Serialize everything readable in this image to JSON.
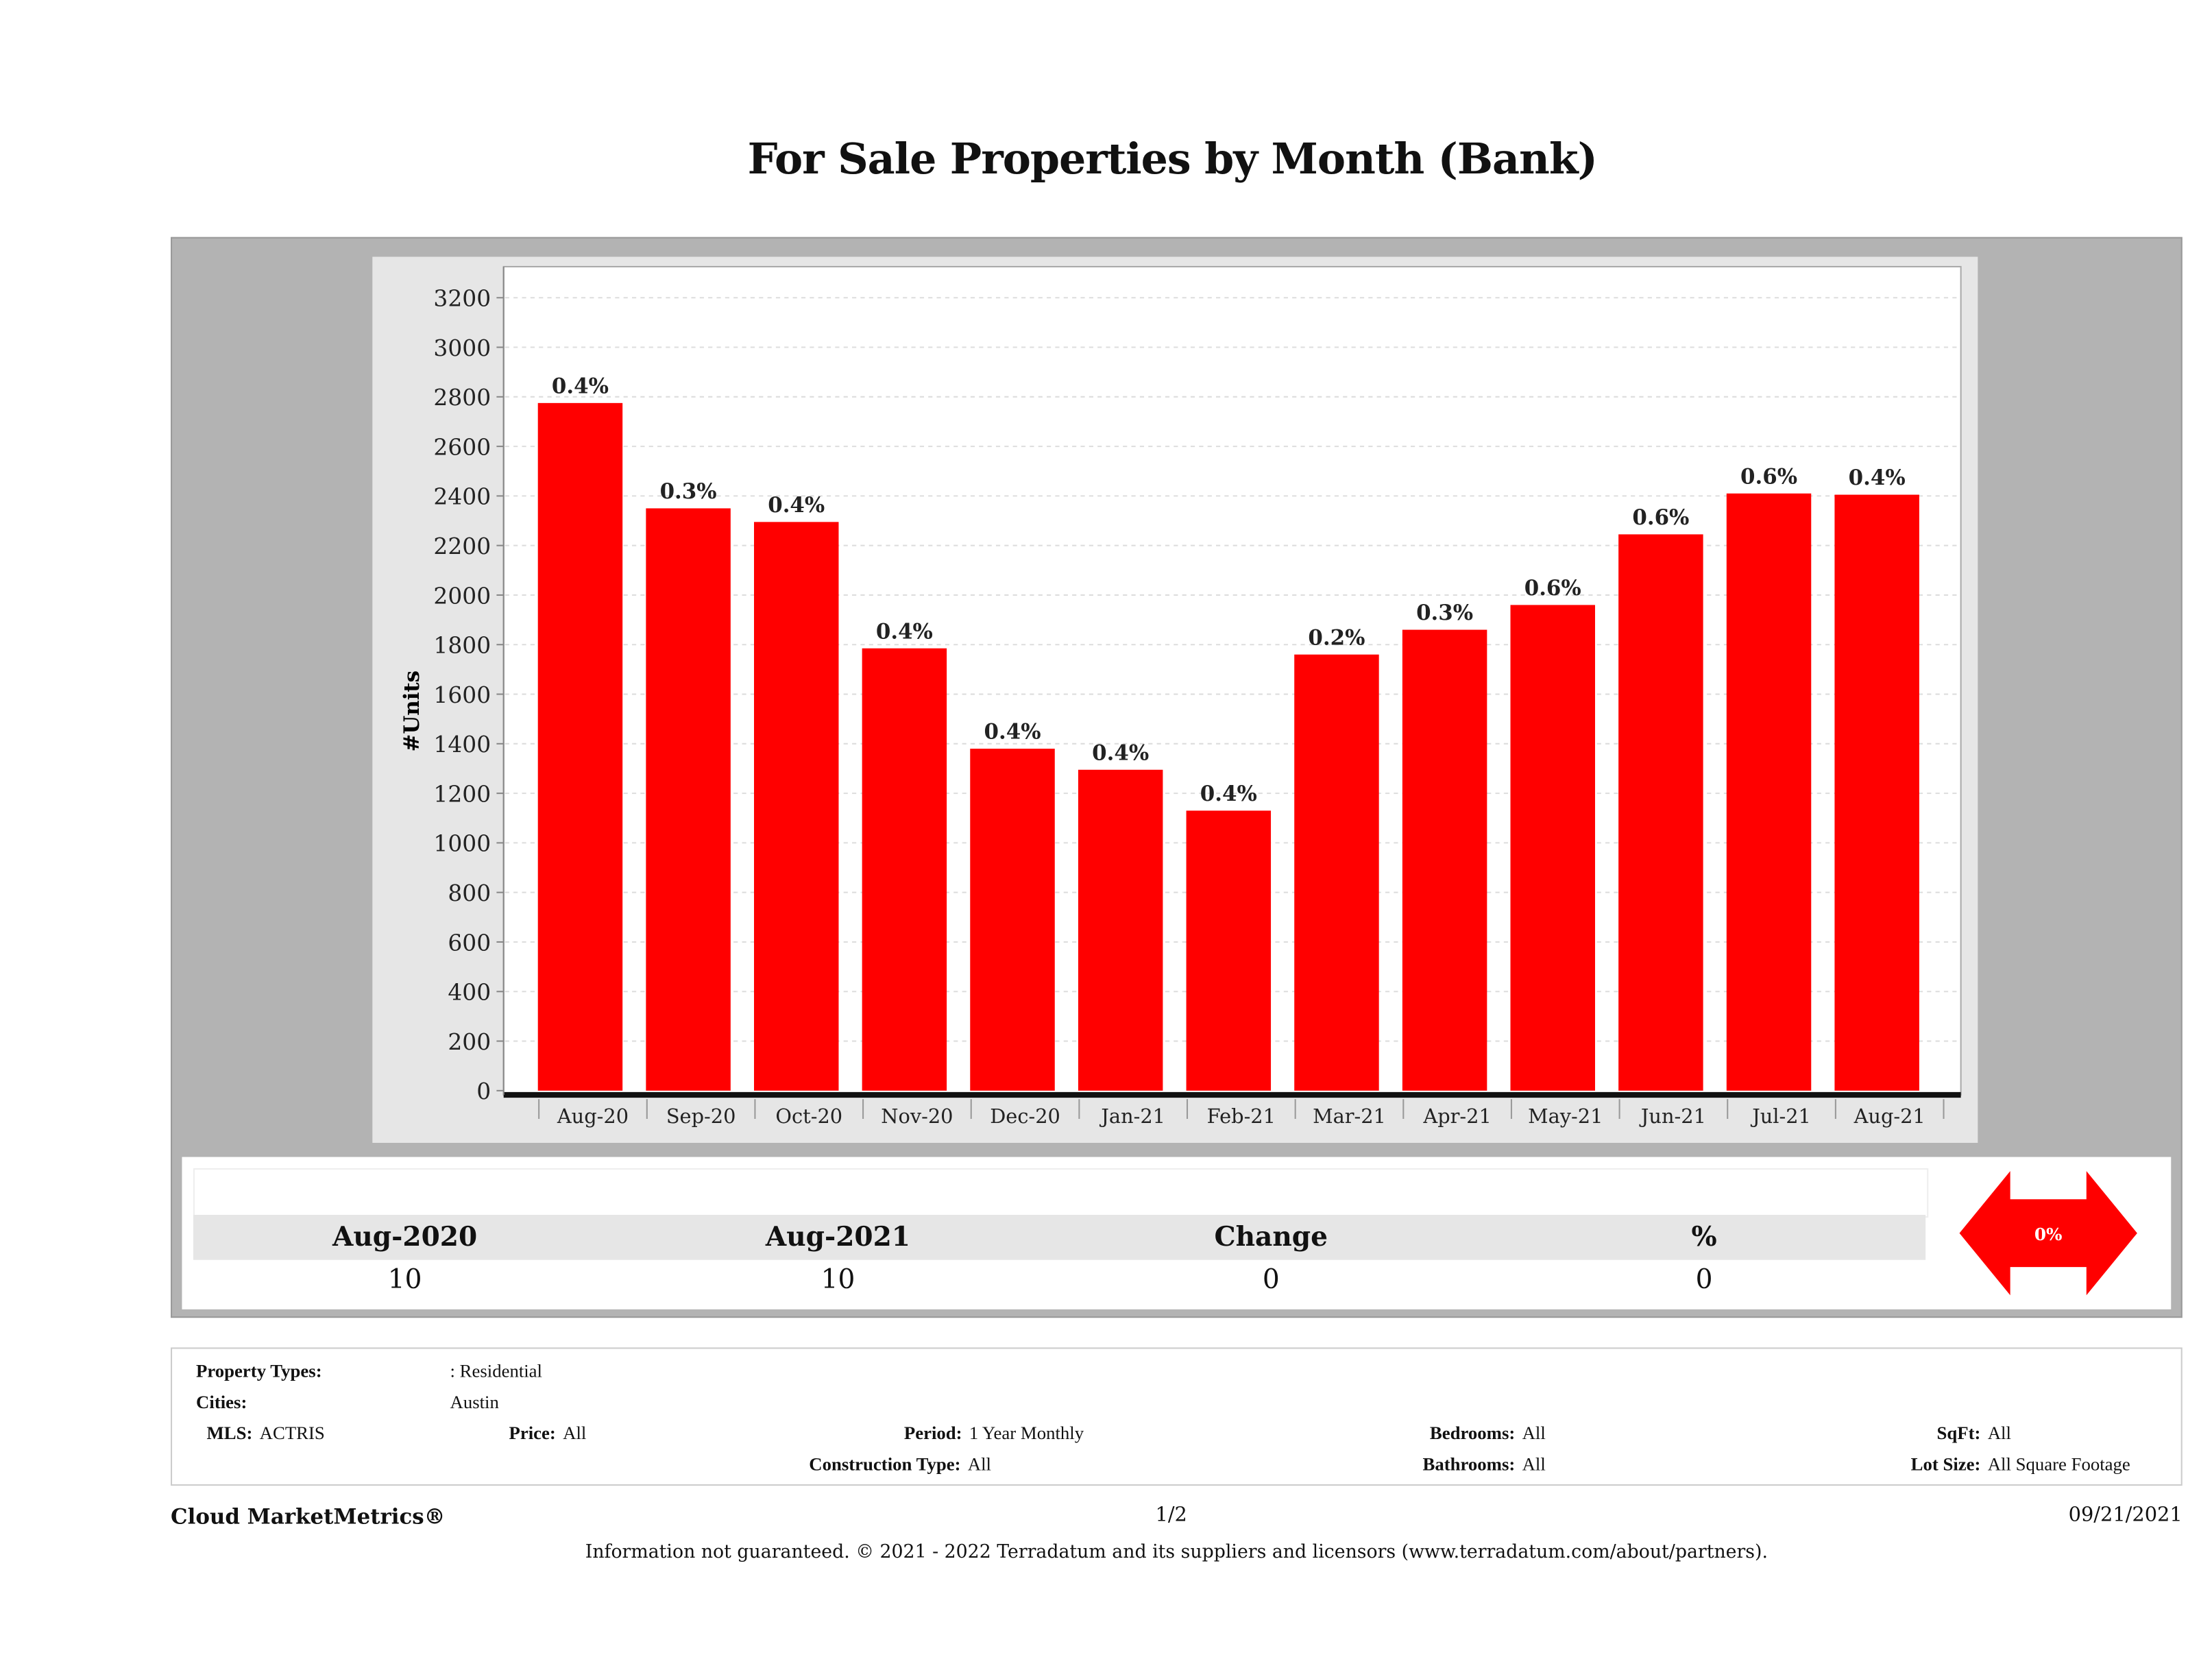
{
  "title": "For Sale Properties by Month (Bank)",
  "chart_data": {
    "type": "bar",
    "title": "For Sale Properties by Month (Bank)",
    "xlabel": "",
    "ylabel": "#Units",
    "ylim": [
      0,
      3330
    ],
    "yticks": [
      0,
      200,
      400,
      600,
      800,
      1000,
      1200,
      1400,
      1600,
      1800,
      2000,
      2200,
      2400,
      2600,
      2800,
      3000,
      3200
    ],
    "grid": true,
    "categories": [
      "Aug-20",
      "Sep-20",
      "Oct-20",
      "Nov-20",
      "Dec-20",
      "Jan-21",
      "Feb-21",
      "Mar-21",
      "Apr-21",
      "May-21",
      "Jun-21",
      "Jul-21",
      "Aug-21"
    ],
    "values": [
      2775,
      2350,
      2295,
      1785,
      1380,
      1295,
      1130,
      1760,
      1860,
      1960,
      2245,
      2410,
      2405
    ],
    "data_labels": [
      "0.4%",
      "0.3%",
      "0.4%",
      "0.4%",
      "0.4%",
      "0.4%",
      "0.4%",
      "0.2%",
      "0.3%",
      "0.6%",
      "0.6%",
      "0.6%",
      "0.4%"
    ],
    "bar_color": "#ff0000"
  },
  "summary": {
    "headers": [
      "Aug-2020",
      "Aug-2021",
      "Change",
      "%"
    ],
    "values": [
      "10",
      "10",
      "0",
      "0"
    ],
    "indicator": "0%",
    "indicator_color": "#ff0000"
  },
  "filters": {
    "property_types_label": "Property Types:",
    "property_types_value": ": Residential",
    "cities_label": "Cities:",
    "cities_value": "Austin",
    "mls_label": "MLS:",
    "mls_value": "ACTRIS",
    "price_label": "Price:",
    "price_value": "All",
    "period_label": "Period:",
    "period_value": "1 Year Monthly",
    "construction_label": "Construction Type:",
    "construction_value": "All",
    "bedrooms_label": "Bedrooms:",
    "bedrooms_value": "All",
    "bathrooms_label": "Bathrooms:",
    "bathrooms_value": "All",
    "sqft_label": "SqFt:",
    "sqft_value": "All",
    "lotsize_label": "Lot Size:",
    "lotsize_value": "All Square Footage"
  },
  "footer": {
    "brand": "Cloud MarketMetrics®",
    "page": "1/2",
    "date": "09/21/2021",
    "disclaimer": "Information not guaranteed. © 2021 - 2022 Terradatum and its suppliers and licensors (www.terradatum.com/about/partners)."
  }
}
